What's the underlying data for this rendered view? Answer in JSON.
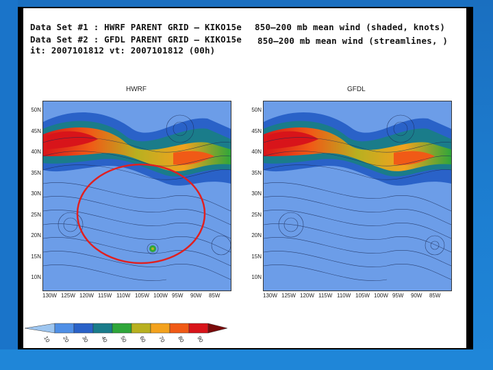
{
  "header": {
    "line1_left": "Data Set #1 : HWRF PARENT GRID — KIKO15e",
    "line2_left": "Data Set #2 : GFDL PARENT GRID — KIKO15e",
    "line3_left": "it: 2007101812   vt: 2007101812 (00h)",
    "line1_right": "850—200 mb mean wind (shaded, knots)",
    "line2_right": "850—200 mb mean wind (streamlines, )"
  },
  "maps": [
    {
      "title": "HWRF"
    },
    {
      "title": "GFDL"
    }
  ],
  "lat_labels": [
    "50N",
    "45N",
    "40N",
    "35N",
    "30N",
    "25N",
    "20N",
    "15N",
    "10N"
  ],
  "lon_labels": [
    "130W",
    "125W",
    "120W",
    "115W",
    "110W",
    "105W",
    "100W",
    "95W",
    "90W",
    "85W"
  ],
  "colorbar": {
    "labels": [
      "10",
      "20",
      "30",
      "40",
      "50",
      "60",
      "70",
      "80",
      "90"
    ],
    "colors": [
      "#9ec6f0",
      "#4f8fe6",
      "#2a62c8",
      "#1a7c8a",
      "#2fa63a",
      "#b8b020",
      "#f3a21e",
      "#f05a16",
      "#d8141a",
      "#7a0a0a"
    ]
  },
  "colors": {
    "ocean_bg": "#6c9de8",
    "annotation_circle": "#e02020"
  }
}
